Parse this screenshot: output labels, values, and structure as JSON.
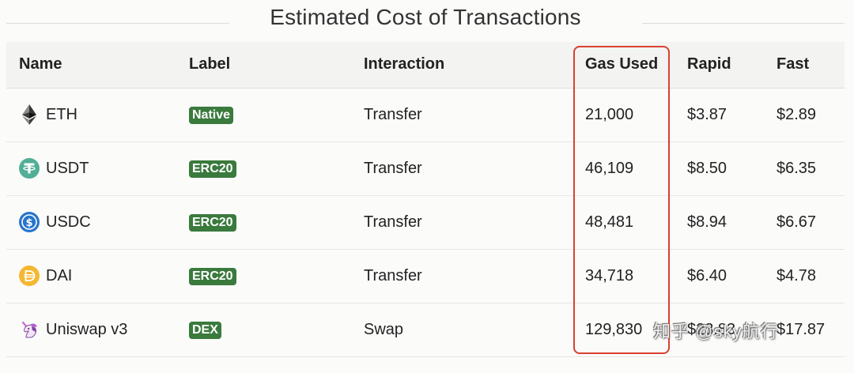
{
  "title": "Estimated Cost of Transactions",
  "table": {
    "headers": {
      "name": "Name",
      "label": "Label",
      "interaction": "Interaction",
      "gas_used": "Gas Used",
      "rapid": "Rapid",
      "fast": "Fast"
    },
    "rows": [
      {
        "name": "ETH",
        "icon": "eth-icon",
        "label": "Native",
        "interaction": "Transfer",
        "gas_used": "21,000",
        "rapid": "$3.87",
        "fast": "$2.89"
      },
      {
        "name": "USDT",
        "icon": "usdt-icon",
        "label": "ERC20",
        "interaction": "Transfer",
        "gas_used": "46,109",
        "rapid": "$8.50",
        "fast": "$6.35"
      },
      {
        "name": "USDC",
        "icon": "usdc-icon",
        "label": "ERC20",
        "interaction": "Transfer",
        "gas_used": "48,481",
        "rapid": "$8.94",
        "fast": "$6.67"
      },
      {
        "name": "DAI",
        "icon": "dai-icon",
        "label": "ERC20",
        "interaction": "Transfer",
        "gas_used": "34,718",
        "rapid": "$6.40",
        "fast": "$4.78"
      },
      {
        "name": "Uniswap v3",
        "icon": "unicorn-icon",
        "label": "DEX",
        "interaction": "Swap",
        "gas_used": "129,830",
        "rapid": "$23.83",
        "fast": "$17.87"
      }
    ]
  },
  "watermark": "知乎 @sky航行",
  "colors": {
    "badge": "#3a7a3d",
    "highlight": "#d9412f",
    "usdt": "#50af95",
    "usdc": "#2775ca",
    "dai": "#f4b731"
  }
}
